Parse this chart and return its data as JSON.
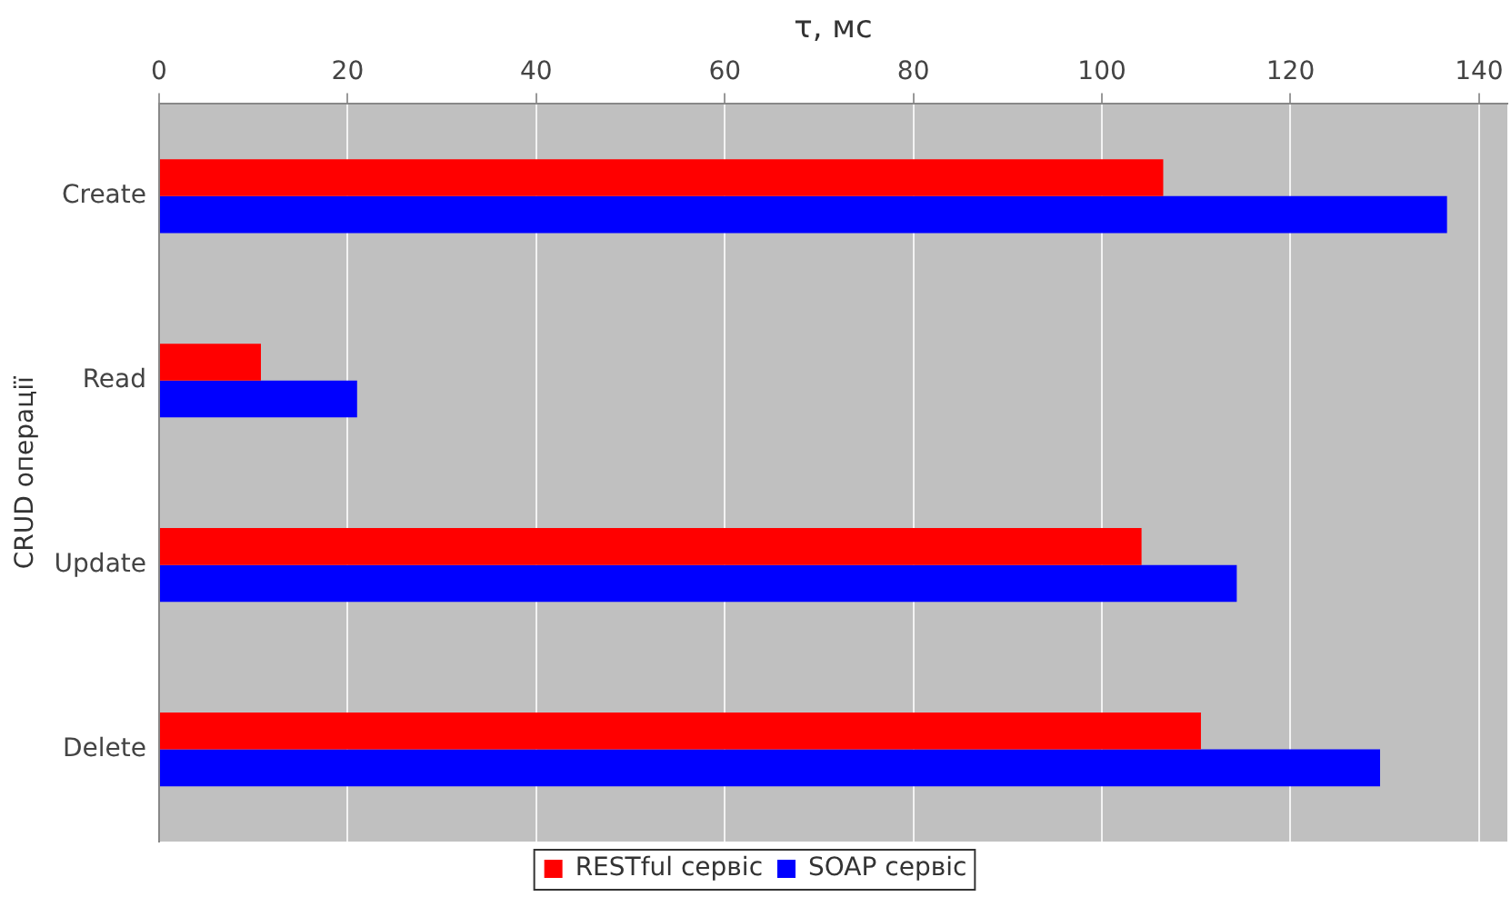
{
  "chart_data": {
    "type": "bar",
    "orientation": "horizontal",
    "xlabel": "τ, мс",
    "ylabel": "CRUD операції",
    "categories": [
      "Create",
      "Read",
      "Update",
      "Delete"
    ],
    "series": [
      {
        "name": "RESTful сервіс",
        "color": "#ff0000",
        "values": [
          106.5,
          10.8,
          104.2,
          110.5
        ]
      },
      {
        "name": "SOAP сервіс",
        "color": "#0000ff",
        "values": [
          136.6,
          21.0,
          114.3,
          129.5
        ]
      }
    ],
    "xlim": [
      0,
      143
    ],
    "xticks": [
      0,
      20,
      40,
      60,
      80,
      100,
      120,
      140
    ],
    "grid": "x",
    "legend": "bottom"
  }
}
